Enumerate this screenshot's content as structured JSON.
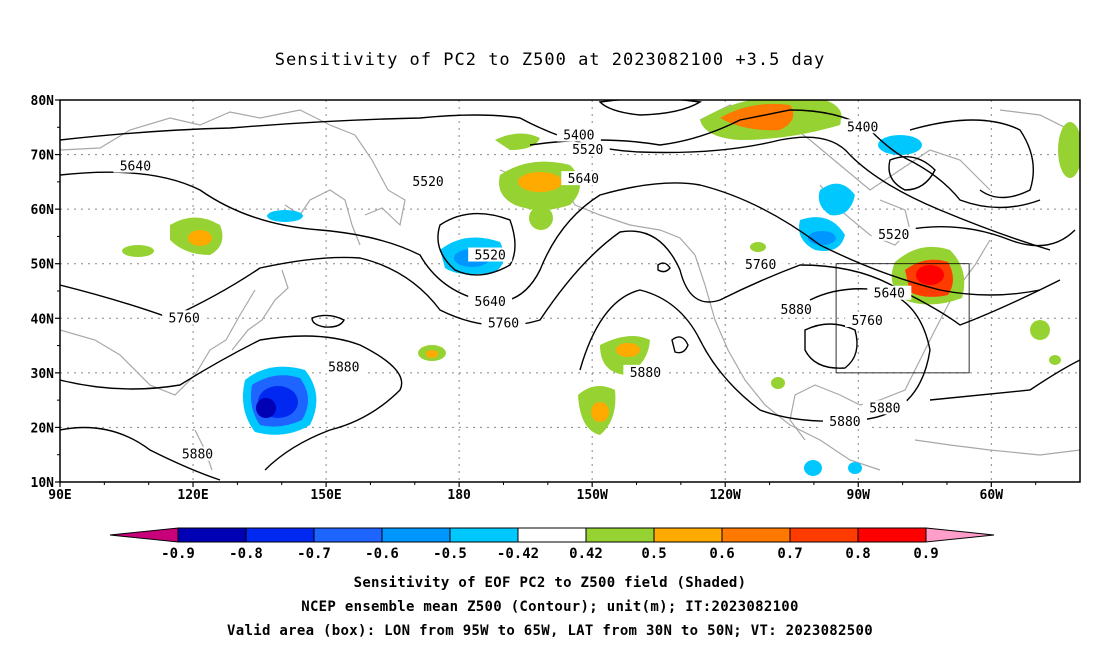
{
  "title": "Sensitivity of PC2 to Z500 at 2023082100 +3.5 day",
  "lat_labels": [
    "80N",
    "70N",
    "60N",
    "50N",
    "40N",
    "30N",
    "20N",
    "10N"
  ],
  "lon_labels": [
    "90E",
    "120E",
    "150E",
    "180",
    "150W",
    "120W",
    "90W",
    "60W"
  ],
  "contour_labels": [
    {
      "text": "5400",
      "lon": 207,
      "lat": 73.5
    },
    {
      "text": "5520",
      "lon": 209,
      "lat": 70.8
    },
    {
      "text": "5640",
      "lon": 208,
      "lat": 65.5
    },
    {
      "text": "5400",
      "lon": 271,
      "lat": 75.0
    },
    {
      "text": "5520",
      "lon": 278,
      "lat": 55.3
    },
    {
      "text": "5640",
      "lon": 277,
      "lat": 44.5
    },
    {
      "text": "5760",
      "lon": 272,
      "lat": 39.5
    },
    {
      "text": "5880",
      "lon": 267,
      "lat": 21.0
    },
    {
      "text": "5880",
      "lon": 256,
      "lat": 41.5
    },
    {
      "text": "5760",
      "lon": 248,
      "lat": 49.8
    },
    {
      "text": "5880",
      "lon": 276,
      "lat": 23.5
    },
    {
      "text": "5880",
      "lon": 222,
      "lat": 30.0
    },
    {
      "text": "5640",
      "lon": 107,
      "lat": 67.8
    },
    {
      "text": "5520",
      "lon": 173,
      "lat": 65.0
    },
    {
      "text": "5520",
      "lon": 187,
      "lat": 51.5
    },
    {
      "text": "5640",
      "lon": 187,
      "lat": 43.0
    },
    {
      "text": "5760",
      "lon": 190,
      "lat": 39.0
    },
    {
      "text": "5760",
      "lon": 118,
      "lat": 40.0
    },
    {
      "text": "5880",
      "lon": 154,
      "lat": 31.0
    },
    {
      "text": "5880",
      "lon": 121,
      "lat": 15.0
    }
  ],
  "colorbar": {
    "labels": [
      "-0.9",
      "-0.8",
      "-0.7",
      "-0.6",
      "-0.5",
      "-0.42",
      "0.42",
      "0.5",
      "0.6",
      "0.7",
      "0.8",
      "0.9"
    ],
    "colors": [
      "#0000b4",
      "#0028f0",
      "#1e64ff",
      "#0096ff",
      "#00c8ff",
      "#ffffff",
      "#96d232",
      "#ffaa00",
      "#ff7800",
      "#ff3c00",
      "#ff0000"
    ],
    "low_color": "#c8007a",
    "high_color": "#ff9ec8"
  },
  "footer": {
    "line1": "Sensitivity of EOF PC2 to Z500 field (Shaded)",
    "line2": "NCEP ensemble mean Z500 (Contour); unit(m); IT:2023082100",
    "line3": "Valid area (box): LON from 95W to 65W, LAT from 30N to 50N; VT: 2023082500"
  },
  "valid_box": {
    "lon_min": 265,
    "lon_max": 295,
    "lat_min": 30,
    "lat_max": 50
  }
}
